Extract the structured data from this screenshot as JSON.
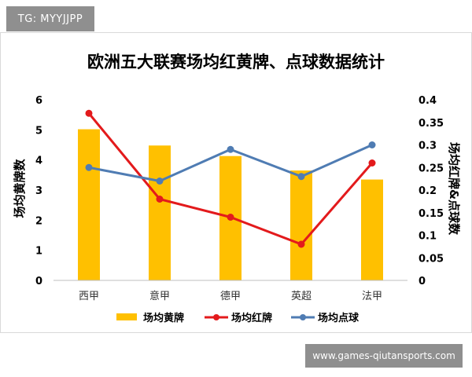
{
  "overlay": {
    "tag": "TG: MYYJJPP",
    "watermark": "www.games-qiutansports.com"
  },
  "chart_data": {
    "type": "bar",
    "title": "欧洲五大联赛场均红黄牌、点球数据统计",
    "categories": [
      "西甲",
      "意甲",
      "德甲",
      "英超",
      "法甲"
    ],
    "ylabel": "场均黄牌数",
    "y2label": "场均红牌&点球数",
    "ylim": [
      0,
      6
    ],
    "y2lim": [
      0,
      0.4
    ],
    "yticks": [
      "0",
      "1",
      "2",
      "3",
      "4",
      "5",
      "6"
    ],
    "y2ticks": [
      "0",
      "0.05",
      "0.1",
      "0.15",
      "0.2",
      "0.25",
      "0.3",
      "0.35",
      "0.4"
    ],
    "grid": false,
    "legend_position": "bottom",
    "series": [
      {
        "name": "场均黄牌",
        "type": "bar",
        "axis": "left",
        "color": "#ffc000",
        "values": [
          5.02,
          4.48,
          4.13,
          3.65,
          3.35
        ]
      },
      {
        "name": "场均红牌",
        "type": "line",
        "axis": "right",
        "color": "#e31a1c",
        "values": [
          0.37,
          0.18,
          0.14,
          0.08,
          0.26
        ]
      },
      {
        "name": "场均点球",
        "type": "line",
        "axis": "right",
        "color": "#4f7cb3",
        "values": [
          0.25,
          0.22,
          0.29,
          0.23,
          0.3
        ]
      }
    ]
  }
}
